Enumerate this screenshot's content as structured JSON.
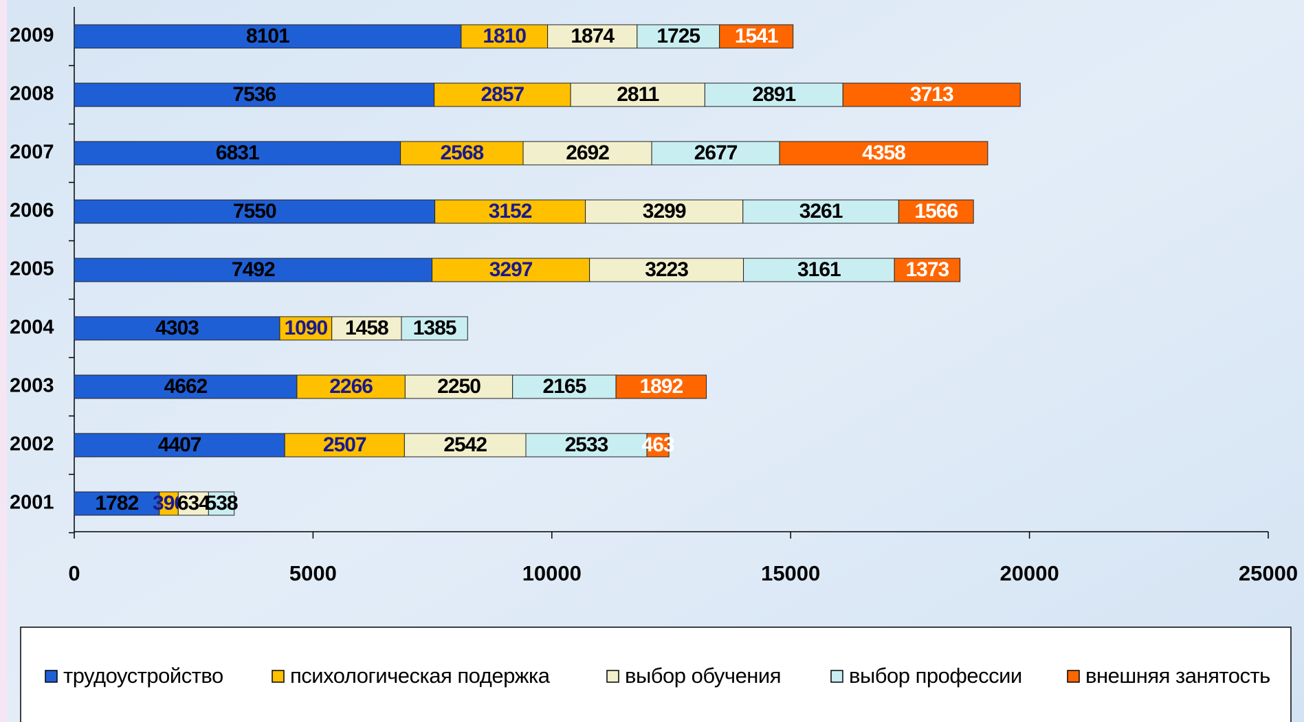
{
  "chart_data": {
    "type": "stacked-barh",
    "categories": [
      "2009",
      "2008",
      "2007",
      "2006",
      "2005",
      "2004",
      "2003",
      "2002",
      "2001"
    ],
    "series": [
      {
        "name": "трудоустройство",
        "color": "#1f5fd6",
        "label_color": "#000000",
        "values": [
          8101,
          7536,
          6831,
          7550,
          7492,
          4303,
          4662,
          4407,
          1782
        ]
      },
      {
        "name": "психологическая подержка",
        "color": "#ffc000",
        "label_color": "#1a1a8c",
        "values": [
          1810,
          2857,
          2568,
          3152,
          3297,
          1090,
          2266,
          2507,
          396
        ]
      },
      {
        "name": "выбор обучения",
        "color": "#f2efcc",
        "label_color": "#000000",
        "values": [
          1874,
          2811,
          2692,
          3299,
          3223,
          1458,
          2250,
          2542,
          634
        ]
      },
      {
        "name": "выбор профессии",
        "color": "#c9eef2",
        "label_color": "#000000",
        "values": [
          1725,
          2891,
          2677,
          3261,
          3161,
          1385,
          2165,
          2533,
          538
        ]
      },
      {
        "name": "внешняя занятость",
        "color": "#ff6600",
        "label_color": "#ffffff",
        "values": [
          1541,
          3713,
          4358,
          1566,
          1373,
          null,
          1892,
          463,
          null
        ]
      }
    ],
    "xlim": [
      0,
      25000
    ],
    "xticks": [
      0,
      5000,
      10000,
      15000,
      20000,
      25000
    ],
    "legend": "bottom"
  }
}
